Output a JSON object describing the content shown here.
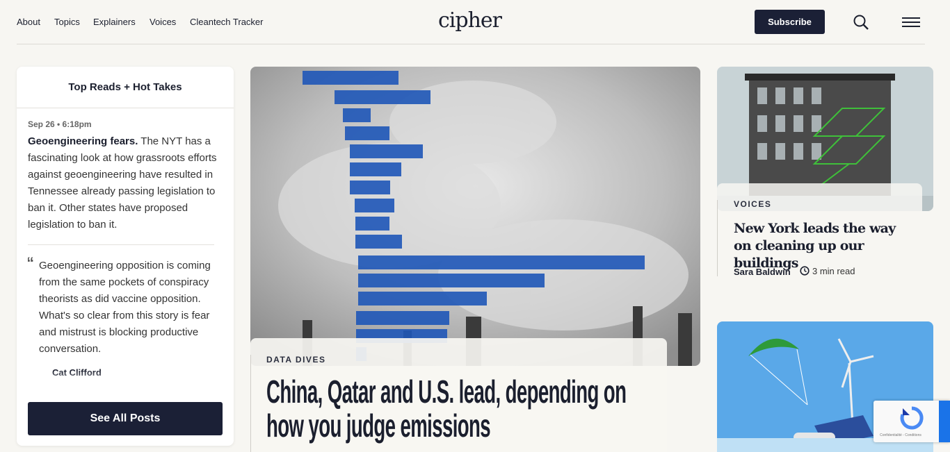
{
  "nav": {
    "links": [
      "About",
      "Topics",
      "Explainers",
      "Voices",
      "Cleantech Tracker"
    ],
    "logo": "cipher",
    "subscribe": "Subscribe"
  },
  "sidebar": {
    "title": "Top Reads + Hot Takes",
    "post": {
      "date": "Sep 26 • 6:18pm",
      "lead": "Geoengineering fears.",
      "text": "The NYT has a fascinating look at how grassroots efforts against geoengineering have resulted in Tennessee already passing legislation to ban it. Other states have proposed legislation to ban it."
    },
    "quote": {
      "mark": "“",
      "text": "Geoengineering opposition is coming from the same pockets of conspiracy theorists as did vaccine opposition. What's so clear from this story is fear and mistrust is blocking productive conversation.",
      "author": "Cat Clifford"
    },
    "button": "See All Posts"
  },
  "feature": {
    "category": "DATA DIVES",
    "headline": "China, Qatar and U.S. lead, depending on how you judge emissions"
  },
  "side_story": {
    "category": "VOICES",
    "headline": "New York leads the way on cleaning up our buildings",
    "author": "Sara Baldwin",
    "read_time": "3 min read"
  },
  "recaptcha": {
    "text": "Confidentialité - Conditions"
  }
}
